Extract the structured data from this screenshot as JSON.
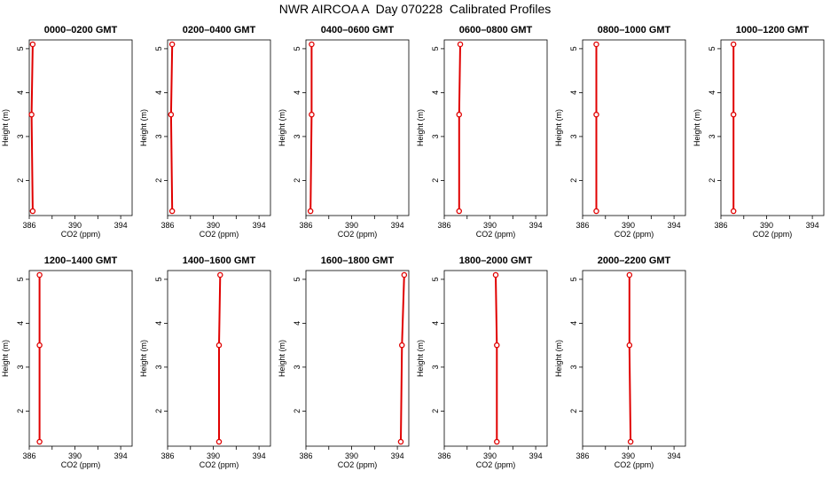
{
  "header": {
    "title": "NWR AIRCOA A  Day 070228  Calibrated Profiles"
  },
  "colors": {
    "data": "#e00000",
    "axis": "#000000",
    "background": "#ffffff"
  },
  "chart_data": [
    {
      "type": "line",
      "title": "0000–0200 GMT",
      "xlabel": "CO2 (ppm)",
      "ylabel": "Height (m)",
      "xlim": [
        386,
        395
      ],
      "ylim": [
        1.2,
        5.2
      ],
      "xticks": [
        386,
        390,
        394
      ],
      "yticks": [
        2,
        3,
        4,
        5
      ],
      "series": [
        {
          "name": "profile",
          "x": [
            386.3,
            386.2,
            386.3
          ],
          "y": [
            1.3,
            3.5,
            5.1
          ]
        }
      ]
    },
    {
      "type": "line",
      "title": "0200–0400 GMT",
      "xlabel": "CO2 (ppm)",
      "ylabel": "Height (m)",
      "xlim": [
        386,
        395
      ],
      "ylim": [
        1.2,
        5.2
      ],
      "xticks": [
        386,
        390,
        394
      ],
      "yticks": [
        2,
        3,
        4,
        5
      ],
      "series": [
        {
          "name": "profile",
          "x": [
            386.4,
            386.3,
            386.4
          ],
          "y": [
            1.3,
            3.5,
            5.1
          ]
        }
      ]
    },
    {
      "type": "line",
      "title": "0400–0600 GMT",
      "xlabel": "CO2 (ppm)",
      "ylabel": "Height (m)",
      "xlim": [
        386,
        395
      ],
      "ylim": [
        1.2,
        5.2
      ],
      "xticks": [
        386,
        390,
        394
      ],
      "yticks": [
        2,
        3,
        4,
        5
      ],
      "series": [
        {
          "name": "profile",
          "x": [
            386.4,
            386.5,
            386.5
          ],
          "y": [
            1.3,
            3.5,
            5.1
          ]
        }
      ]
    },
    {
      "type": "line",
      "title": "0600–0800 GMT",
      "xlabel": "CO2 (ppm)",
      "ylabel": "Height (m)",
      "xlim": [
        386,
        395
      ],
      "ylim": [
        1.2,
        5.2
      ],
      "xticks": [
        386,
        390,
        394
      ],
      "yticks": [
        2,
        3,
        4,
        5
      ],
      "series": [
        {
          "name": "profile",
          "x": [
            387.3,
            387.3,
            387.4
          ],
          "y": [
            1.3,
            3.5,
            5.1
          ]
        }
      ]
    },
    {
      "type": "line",
      "title": "0800–1000 GMT",
      "xlabel": "CO2 (ppm)",
      "ylabel": "Height (m)",
      "xlim": [
        386,
        395
      ],
      "ylim": [
        1.2,
        5.2
      ],
      "xticks": [
        386,
        390,
        394
      ],
      "yticks": [
        2,
        3,
        4,
        5
      ],
      "series": [
        {
          "name": "profile",
          "x": [
            387.2,
            387.2,
            387.2
          ],
          "y": [
            1.3,
            3.5,
            5.1
          ]
        }
      ]
    },
    {
      "type": "line",
      "title": "1000–1200 GMT",
      "xlabel": "CO2 (ppm)",
      "ylabel": "Height (m)",
      "xlim": [
        386,
        395
      ],
      "ylim": [
        1.2,
        5.2
      ],
      "xticks": [
        386,
        390,
        394
      ],
      "yticks": [
        2,
        3,
        4,
        5
      ],
      "series": [
        {
          "name": "profile",
          "x": [
            387.1,
            387.1,
            387.1
          ],
          "y": [
            1.3,
            3.5,
            5.1
          ]
        }
      ]
    },
    {
      "type": "line",
      "title": "1200–1400 GMT",
      "xlabel": "CO2 (ppm)",
      "ylabel": "Height (m)",
      "xlim": [
        386,
        395
      ],
      "ylim": [
        1.2,
        5.2
      ],
      "xticks": [
        386,
        390,
        394
      ],
      "yticks": [
        2,
        3,
        4,
        5
      ],
      "series": [
        {
          "name": "profile",
          "x": [
            386.9,
            386.9,
            386.9
          ],
          "y": [
            1.3,
            3.5,
            5.1
          ]
        }
      ]
    },
    {
      "type": "line",
      "title": "1400–1600 GMT",
      "xlabel": "CO2 (ppm)",
      "ylabel": "Height (m)",
      "xlim": [
        386,
        395
      ],
      "ylim": [
        1.2,
        5.2
      ],
      "xticks": [
        386,
        390,
        394
      ],
      "yticks": [
        2,
        3,
        4,
        5
      ],
      "series": [
        {
          "name": "profile",
          "x": [
            390.5,
            390.5,
            390.6
          ],
          "y": [
            1.3,
            3.5,
            5.1
          ]
        }
      ]
    },
    {
      "type": "line",
      "title": "1600–1800 GMT",
      "xlabel": "CO2 (ppm)",
      "ylabel": "Height (m)",
      "xlim": [
        386,
        395
      ],
      "ylim": [
        1.2,
        5.2
      ],
      "xticks": [
        386,
        390,
        394
      ],
      "yticks": [
        2,
        3,
        4,
        5
      ],
      "series": [
        {
          "name": "profile",
          "x": [
            394.3,
            394.4,
            394.6
          ],
          "y": [
            1.3,
            3.5,
            5.1
          ]
        }
      ]
    },
    {
      "type": "line",
      "title": "1800–2000 GMT",
      "xlabel": "CO2 (ppm)",
      "ylabel": "Height (m)",
      "xlim": [
        386,
        395
      ],
      "ylim": [
        1.2,
        5.2
      ],
      "xticks": [
        386,
        390,
        394
      ],
      "yticks": [
        2,
        3,
        4,
        5
      ],
      "series": [
        {
          "name": "profile",
          "x": [
            390.6,
            390.6,
            390.5
          ],
          "y": [
            1.3,
            3.5,
            5.1
          ]
        }
      ]
    },
    {
      "type": "line",
      "title": "2000–2200 GMT",
      "xlabel": "CO2 (ppm)",
      "ylabel": "Height (m)",
      "xlim": [
        386,
        395
      ],
      "ylim": [
        1.2,
        5.2
      ],
      "xticks": [
        386,
        390,
        394
      ],
      "yticks": [
        2,
        3,
        4,
        5
      ],
      "series": [
        {
          "name": "profile",
          "x": [
            390.2,
            390.1,
            390.1
          ],
          "y": [
            1.3,
            3.5,
            5.1
          ]
        }
      ]
    }
  ]
}
